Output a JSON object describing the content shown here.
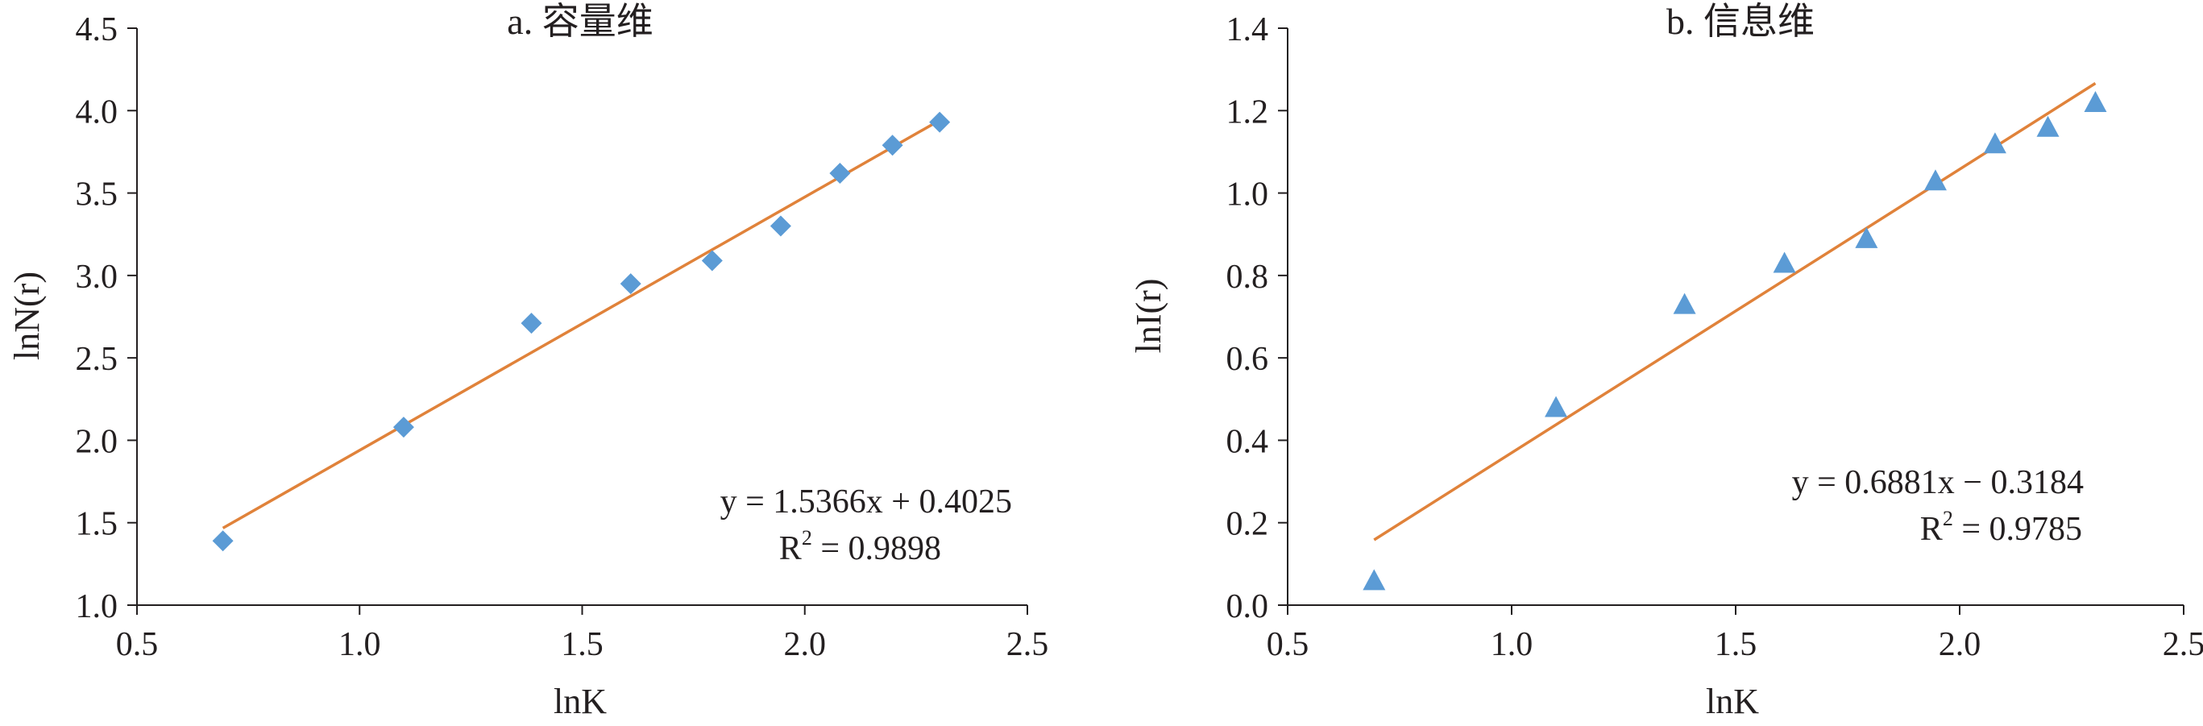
{
  "colors": {
    "axis": "#231f20",
    "marker": "#5b9bd5",
    "trendline": "#e0823a"
  },
  "chart_data": [
    {
      "type": "scatter",
      "title": "a. 容量维",
      "xlabel": "lnK",
      "ylabel": "lnN(r)",
      "xlim": [
        0.5,
        2.5
      ],
      "ylim": [
        1.0,
        4.5
      ],
      "x_ticks": [
        "0.5",
        "1.0",
        "1.5",
        "2.0",
        "2.5"
      ],
      "y_ticks": [
        "1.0",
        "1.5",
        "2.0",
        "2.5",
        "3.0",
        "3.5",
        "4.0",
        "4.5"
      ],
      "marker": "diamond",
      "x": [
        0.693,
        1.099,
        1.386,
        1.609,
        1.792,
        1.946,
        2.079,
        2.197,
        2.303
      ],
      "y": [
        1.39,
        2.08,
        2.71,
        2.95,
        3.09,
        3.3,
        3.62,
        3.79,
        3.93
      ],
      "trendline": {
        "slope": 1.5366,
        "intercept": 0.4025,
        "equation": "y = 1.5366x + 0.4025",
        "r2_label": "R",
        "r2_sup": "2",
        "r2_value": " = 0.9898"
      }
    },
    {
      "type": "scatter",
      "title": "b. 信息维",
      "xlabel": "lnK",
      "ylabel": "lnI(r)",
      "xlim": [
        0.5,
        2.5
      ],
      "ylim": [
        0.0,
        1.4
      ],
      "x_ticks": [
        "0.5",
        "1.0",
        "1.5",
        "2.0",
        "2.5"
      ],
      "y_ticks": [
        "0.0",
        "0.2",
        "0.4",
        "0.6",
        "0.8",
        "1.0",
        "1.2",
        "1.4"
      ],
      "marker": "triangle",
      "x": [
        0.693,
        1.099,
        1.386,
        1.609,
        1.792,
        1.946,
        2.079,
        2.197,
        2.303
      ],
      "y": [
        0.06,
        0.48,
        0.73,
        0.83,
        0.89,
        1.03,
        1.12,
        1.16,
        1.22
      ],
      "trendline": {
        "slope": 0.6881,
        "intercept": -0.3184,
        "equation": "y = 0.6881x − 0.3184",
        "r2_label": "R",
        "r2_sup": "2",
        "r2_value": " = 0.9785"
      }
    }
  ]
}
